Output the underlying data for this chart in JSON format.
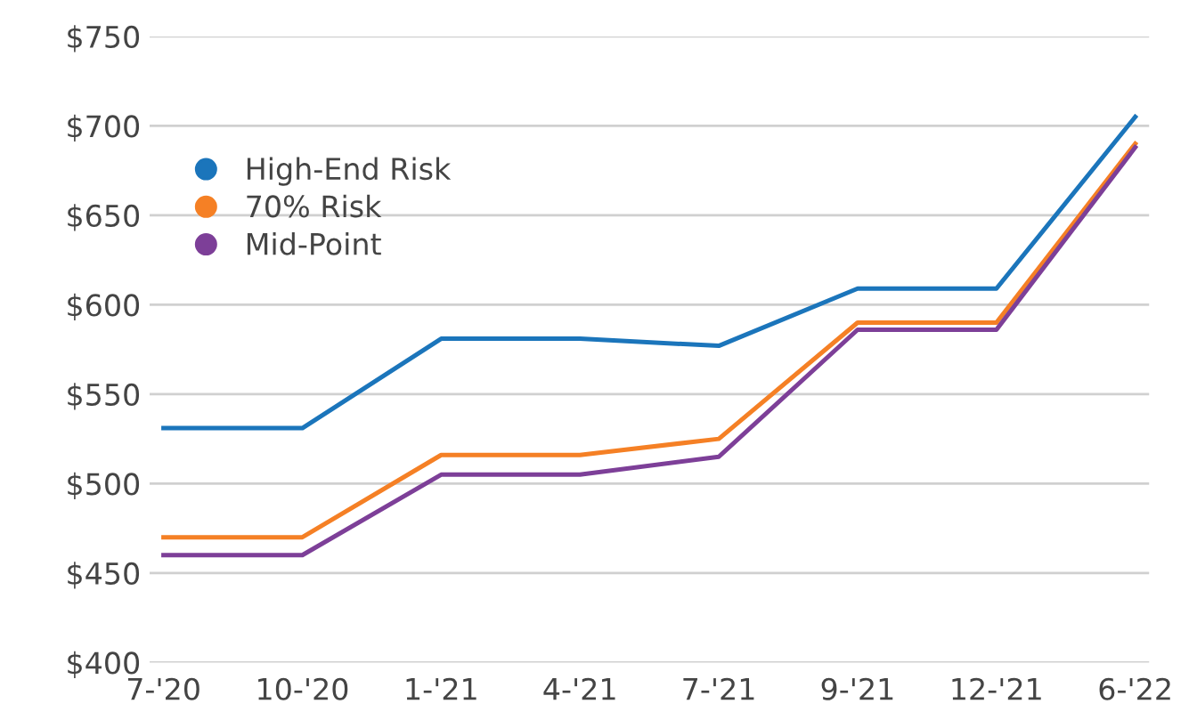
{
  "chart_data": {
    "type": "line",
    "categories": [
      "7-'20",
      "10-'20",
      "1-'21",
      "4-'21",
      "7-'21",
      "9-'21",
      "12-'21",
      "6-'22"
    ],
    "series": [
      {
        "name": "High-End Risk",
        "color": "#1b75bb",
        "values": [
          531,
          531,
          581,
          581,
          577,
          609,
          609,
          705
        ]
      },
      {
        "name": "70% Risk",
        "color": "#f58025",
        "values": [
          470,
          470,
          516,
          516,
          525,
          590,
          590,
          690
        ]
      },
      {
        "name": "Mid-Point",
        "color": "#7d3f98",
        "values": [
          460,
          460,
          505,
          505,
          515,
          586,
          586,
          688
        ]
      }
    ],
    "ylim": [
      400,
      750
    ],
    "yticks": [
      {
        "value": 400,
        "label": "$400"
      },
      {
        "value": 450,
        "label": "$450"
      },
      {
        "value": 500,
        "label": "$500"
      },
      {
        "value": 550,
        "label": "$550"
      },
      {
        "value": 600,
        "label": "$600"
      },
      {
        "value": 650,
        "label": "$650"
      },
      {
        "value": 700,
        "label": "$700"
      },
      {
        "value": 750,
        "label": "$750"
      }
    ],
    "grid": "y",
    "legend": "top left",
    "line_style": "solid"
  }
}
